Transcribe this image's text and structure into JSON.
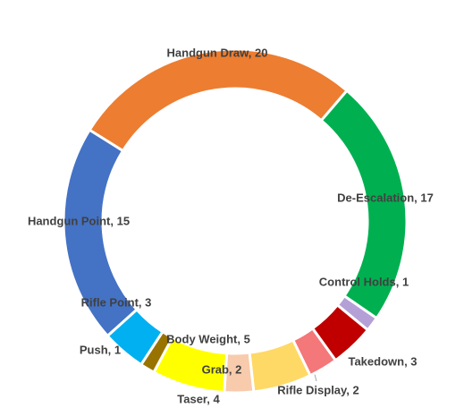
{
  "chart_data": {
    "type": "donut",
    "values": [
      20,
      17,
      1,
      3,
      2,
      4,
      2,
      5,
      1,
      3,
      15
    ],
    "value_labels": [
      "Handgun Draw, 20",
      "De-Escalation, 17",
      "Control Holds, 1",
      "Takedown, 3",
      "Rifle Display, 2",
      "Taser, 4",
      "Grab, 2",
      "Body Weight, 5",
      "Push, 1",
      "Rifle Point, 3",
      "Handgun Point, 15"
    ],
    "colors": [
      "#ed7d31",
      "#00b050",
      "#b4a0d6",
      "#c00000",
      "#f4777a",
      "#ffd966",
      "#f8cbad",
      "#ffff00",
      "#997300",
      "#00b0f0",
      "#4472c4"
    ]
  }
}
